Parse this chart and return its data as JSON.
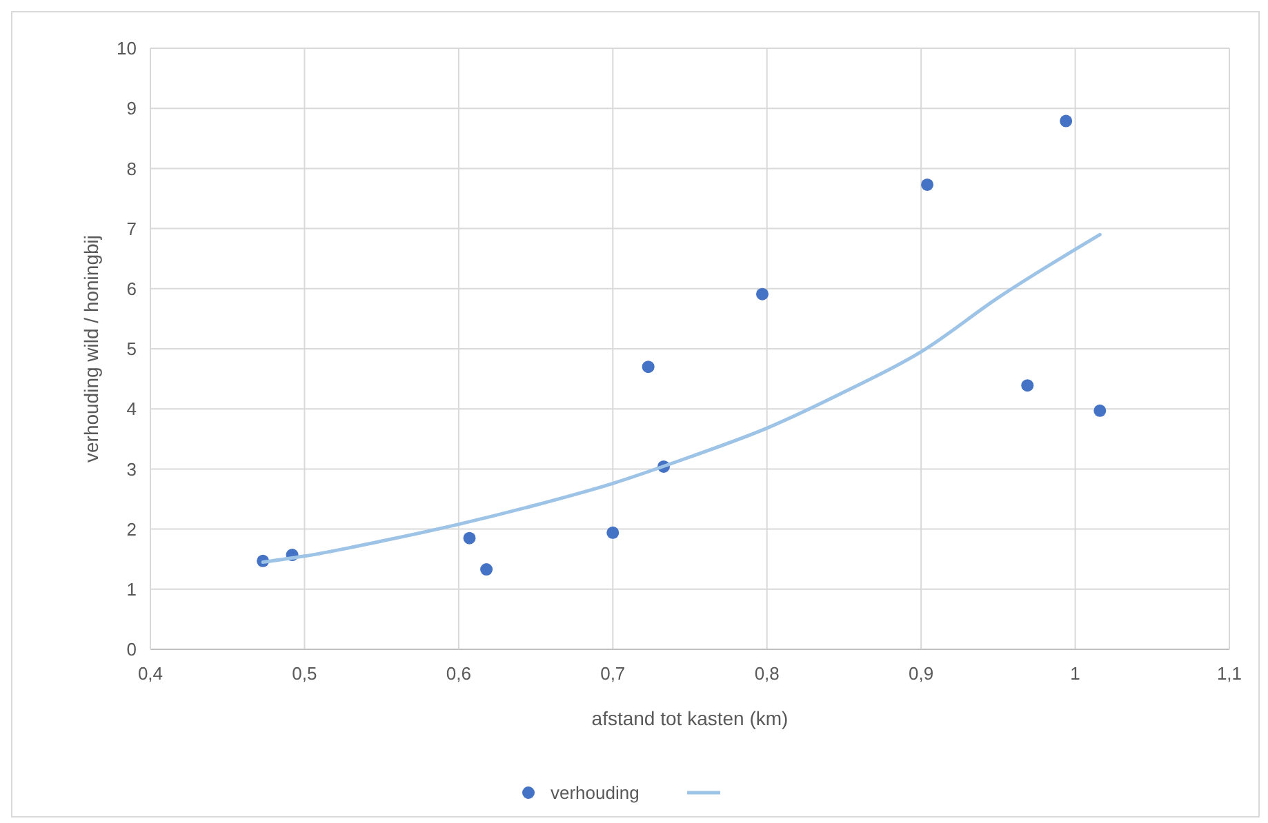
{
  "chart_data": {
    "type": "scatter",
    "xlabel": "afstand tot kasten (km)",
    "ylabel": "verhouding wild / honingbij",
    "xlim": [
      0.4,
      1.1
    ],
    "xticks": [
      {
        "value": 0.4,
        "label": "0,4"
      },
      {
        "value": 0.5,
        "label": "0,5"
      },
      {
        "value": 0.6,
        "label": "0,6"
      },
      {
        "value": 0.7,
        "label": "0,7"
      },
      {
        "value": 0.8,
        "label": "0,8"
      },
      {
        "value": 0.9,
        "label": "0,9"
      },
      {
        "value": 1,
        "label": "1"
      },
      {
        "value": 1.1,
        "label": "1,1"
      }
    ],
    "ylim": [
      0,
      10
    ],
    "yticks": [
      0,
      1,
      2,
      3,
      4,
      5,
      6,
      7,
      8,
      9,
      10
    ],
    "grid": true,
    "legend": "bottom",
    "series": [
      {
        "name": "verhouding",
        "marker": "circle",
        "color": "#4472c4",
        "x": [
          0.473,
          0.492,
          0.607,
          0.618,
          0.7,
          0.723,
          0.733,
          0.797,
          0.904,
          0.969,
          0.994,
          1.016
        ],
        "values": [
          1.47,
          1.57,
          1.85,
          1.33,
          1.94,
          4.7,
          3.04,
          5.91,
          7.73,
          4.39,
          8.79,
          3.97
        ]
      },
      {
        "type": "line",
        "marker": "none",
        "color": "#9dc3e6",
        "x": [
          0.473,
          0.5,
          0.55,
          0.6,
          0.65,
          0.7,
          0.75,
          0.8,
          0.85,
          0.9,
          0.95,
          1.016
        ],
        "values": [
          1.45,
          1.55,
          1.8,
          2.08,
          2.4,
          2.76,
          3.2,
          3.68,
          4.28,
          4.95,
          5.85,
          6.9
        ]
      }
    ]
  }
}
